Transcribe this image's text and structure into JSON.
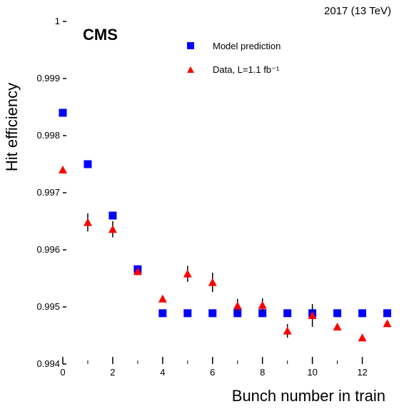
{
  "chart_data": {
    "type": "scatter",
    "title": "",
    "experiment_label": "CMS",
    "energy_label": "2017 (13 TeV)",
    "xlabel": "Bunch number in train",
    "ylabel": "Hit efficiency",
    "xlim": [
      0,
      13.5
    ],
    "ylim": [
      0.994,
      1.0
    ],
    "x_ticks": [
      0,
      2,
      4,
      6,
      8,
      10,
      12
    ],
    "x_tick_labels": [
      "0",
      "2",
      "4",
      "6",
      "8",
      "10",
      "12"
    ],
    "y_ticks": [
      0.994,
      0.995,
      0.996,
      0.997,
      0.998,
      0.999,
      1.0
    ],
    "y_tick_labels": [
      "0.994",
      "0.995",
      "0.996",
      "0.997",
      "0.998",
      "0.999",
      "1"
    ],
    "grid": false,
    "legend_position": "top-right",
    "series": [
      {
        "name": "Model prediction",
        "marker": "square",
        "color": "#0000ff",
        "x": [
          0,
          1,
          2,
          3,
          4,
          5,
          6,
          7,
          8,
          9,
          10,
          11,
          12,
          13
        ],
        "y": [
          0.9984,
          0.9975,
          0.9966,
          0.99566,
          0.99489,
          0.99489,
          0.99489,
          0.99489,
          0.99489,
          0.99489,
          0.99489,
          0.99489,
          0.99489,
          0.99489
        ]
      },
      {
        "name": "Data, L=1.1 fb⁻¹",
        "marker": "triangle",
        "color": "#ff0000",
        "x": [
          0,
          1,
          2,
          3,
          4,
          5,
          6,
          7,
          8,
          9,
          10,
          11,
          12,
          13
        ],
        "y": [
          0.9974,
          0.99648,
          0.99636,
          0.99562,
          0.99514,
          0.99558,
          0.99543,
          0.99502,
          0.99503,
          0.99458,
          0.99485,
          0.99465,
          0.99446,
          0.99471
        ],
        "yerr": [
          3e-05,
          0.00016,
          0.00014,
          3e-05,
          3e-05,
          0.00014,
          0.00017,
          0.00012,
          0.00012,
          0.00012,
          0.0002,
          6e-05,
          3e-05,
          3e-05
        ]
      }
    ]
  }
}
